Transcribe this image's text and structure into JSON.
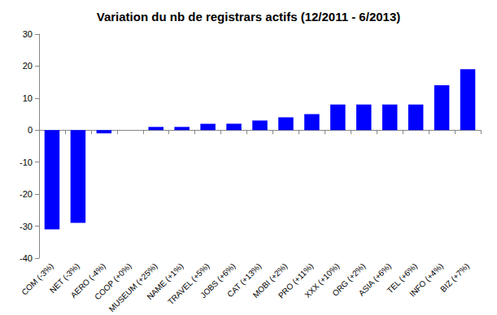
{
  "chart_data": {
    "type": "bar",
    "title": "Variation du nb de registrars actifs (12/2011 - 6/2013)",
    "categories": [
      "COM (-3%)",
      "NET (-3%)",
      "AERO (-4%)",
      "COOP (+0%)",
      "MUSEUM (+25%)",
      "NAME (+1%)",
      "TRAVEL (+5%)",
      "JOBS (+6%)",
      "CAT (+13%)",
      "MOBI (+2%)",
      "PRO (+11%)",
      "XXX (+10%)",
      "ORG (+2%)",
      "ASIA (+6%)",
      "TEL (+6%)",
      "INFO (+4%)",
      "BIZ (+7%)"
    ],
    "values": [
      -31,
      -29,
      -1,
      0,
      1,
      1,
      2,
      2,
      3,
      4,
      5,
      8,
      8,
      8,
      8,
      14,
      19
    ],
    "color": "#0000ff",
    "ylim": [
      -40,
      30
    ],
    "yticks": [
      -40,
      -30,
      -20,
      -10,
      0,
      10,
      20,
      30
    ],
    "grid": false
  }
}
